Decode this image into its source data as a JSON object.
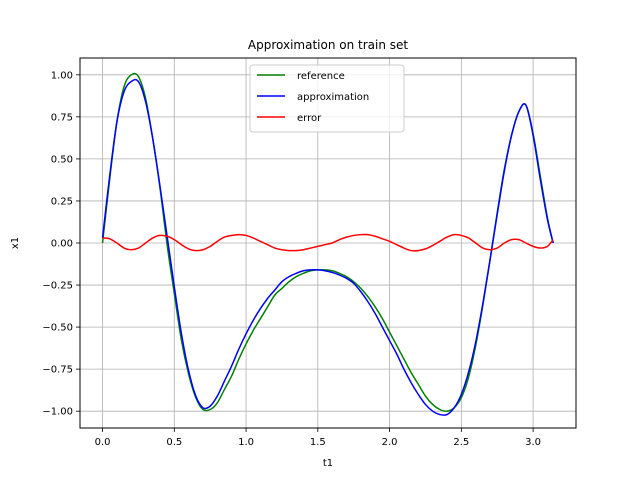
{
  "chart_data": {
    "type": "line",
    "title": "Approximation on train set",
    "xlabel": "t1",
    "ylabel": "x1",
    "xlim": [
      -0.157,
      3.299
    ],
    "ylim": [
      -1.1,
      1.1
    ],
    "grid": true,
    "legend_position": "top-center",
    "xticks": [
      "0.0",
      "0.5",
      "1.0",
      "1.5",
      "2.0",
      "2.5",
      "3.0"
    ],
    "xtick_values": [
      0.0,
      0.5,
      1.0,
      1.5,
      2.0,
      2.5,
      3.0
    ],
    "yticks": [
      "1.00",
      "0.75",
      "0.50",
      "0.25",
      "0.00",
      "−0.25",
      "−0.50",
      "−0.75",
      "−1.00"
    ],
    "ytick_values": [
      1.0,
      0.75,
      0.5,
      0.25,
      0.0,
      -0.25,
      -0.5,
      -0.75,
      -1.0
    ],
    "x": [
      0.0,
      0.05,
      0.1,
      0.15,
      0.2,
      0.25,
      0.3,
      0.35,
      0.4,
      0.45,
      0.5,
      0.55,
      0.6,
      0.65,
      0.7,
      0.75,
      0.8,
      0.85,
      0.9,
      0.95,
      1.0,
      1.05,
      1.1,
      1.15,
      1.2,
      1.25,
      1.3,
      1.35,
      1.4,
      1.45,
      1.5,
      1.55,
      1.6,
      1.65,
      1.7,
      1.75,
      1.8,
      1.85,
      1.9,
      1.95,
      2.0,
      2.05,
      2.1,
      2.15,
      2.2,
      2.25,
      2.3,
      2.35,
      2.4,
      2.45,
      2.5,
      2.55,
      2.6,
      2.65,
      2.7,
      2.75,
      2.8,
      2.85,
      2.9,
      2.95,
      3.0,
      3.05,
      3.1,
      3.14
    ],
    "series": [
      {
        "name": "reference",
        "color": "#008000",
        "values": [
          0.0,
          0.38,
          0.72,
          0.93,
          1.0,
          0.99,
          0.86,
          0.62,
          0.33,
          -0.01,
          -0.3,
          -0.58,
          -0.78,
          -0.92,
          -0.99,
          -0.99,
          -0.95,
          -0.87,
          -0.79,
          -0.69,
          -0.6,
          -0.52,
          -0.45,
          -0.38,
          -0.31,
          -0.27,
          -0.23,
          -0.2,
          -0.18,
          -0.165,
          -0.16,
          -0.16,
          -0.165,
          -0.18,
          -0.2,
          -0.23,
          -0.27,
          -0.32,
          -0.38,
          -0.45,
          -0.53,
          -0.61,
          -0.69,
          -0.77,
          -0.84,
          -0.91,
          -0.96,
          -0.99,
          -1.0,
          -0.98,
          -0.92,
          -0.8,
          -0.61,
          -0.37,
          -0.1,
          0.18,
          0.44,
          0.64,
          0.78,
          0.82,
          0.65,
          0.4,
          0.15,
          0.0
        ]
      },
      {
        "name": "approximation",
        "color": "#0000ff",
        "values": [
          0.03,
          0.4,
          0.72,
          0.9,
          0.96,
          0.96,
          0.84,
          0.62,
          0.34,
          0.04,
          -0.26,
          -0.54,
          -0.76,
          -0.91,
          -0.98,
          -0.97,
          -0.91,
          -0.82,
          -0.73,
          -0.63,
          -0.54,
          -0.46,
          -0.39,
          -0.33,
          -0.28,
          -0.23,
          -0.2,
          -0.18,
          -0.165,
          -0.16,
          -0.16,
          -0.165,
          -0.175,
          -0.19,
          -0.21,
          -0.24,
          -0.29,
          -0.35,
          -0.42,
          -0.5,
          -0.58,
          -0.66,
          -0.75,
          -0.83,
          -0.9,
          -0.96,
          -1.0,
          -1.02,
          -1.02,
          -0.98,
          -0.9,
          -0.77,
          -0.59,
          -0.36,
          -0.1,
          0.17,
          0.43,
          0.64,
          0.78,
          0.82,
          0.64,
          0.38,
          0.14,
          0.0
        ]
      },
      {
        "name": "error",
        "color": "#ff0000",
        "values": [
          0.03,
          0.025,
          0.0,
          -0.03,
          -0.04,
          -0.03,
          0.0,
          0.03,
          0.045,
          0.04,
          0.02,
          -0.01,
          -0.035,
          -0.045,
          -0.04,
          -0.02,
          0.01,
          0.035,
          0.045,
          0.05,
          0.045,
          0.03,
          0.01,
          -0.01,
          -0.03,
          -0.04,
          -0.045,
          -0.045,
          -0.04,
          -0.03,
          -0.02,
          -0.01,
          0.0,
          0.02,
          0.035,
          0.045,
          0.05,
          0.05,
          0.04,
          0.025,
          0.01,
          -0.01,
          -0.03,
          -0.045,
          -0.045,
          -0.035,
          -0.015,
          0.01,
          0.035,
          0.05,
          0.045,
          0.03,
          0.0,
          -0.03,
          -0.04,
          -0.03,
          0.0,
          0.02,
          0.02,
          0.0,
          -0.02,
          -0.03,
          -0.02,
          0.02
        ]
      }
    ]
  }
}
